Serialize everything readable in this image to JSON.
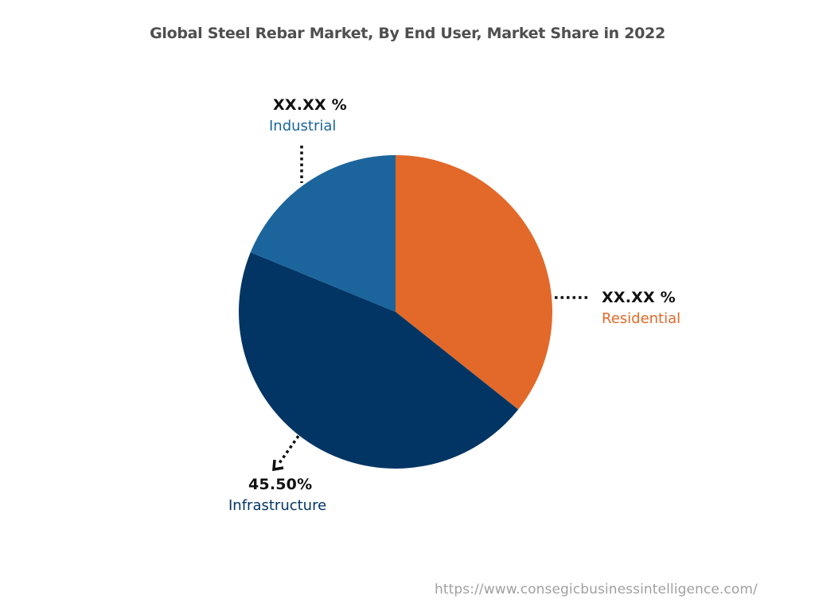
{
  "chart_data": {
    "type": "pie",
    "title": "Global Steel Rebar Market, By End User, Market Share in 2022",
    "slices": [
      {
        "label": "Residential",
        "value": 35.7,
        "display": "XX.XX %",
        "color": "#e2692a"
      },
      {
        "label": "Infrastructure",
        "value": 45.5,
        "display": "45.50%",
        "color": "#023564"
      },
      {
        "label": "Industrial",
        "value": 18.8,
        "display": "XX.XX %",
        "color": "#1b659c"
      }
    ],
    "start_angle_deg": 0,
    "direction": "clockwise",
    "legend": "none (callout labels)"
  },
  "title": "Global Steel Rebar Market, By End User, Market Share in 2022",
  "labels": {
    "industrial": {
      "pct": "XX.XX %",
      "name": "Industrial"
    },
    "residential": {
      "pct": "XX.XX %",
      "name": "Residential"
    },
    "infrastructure": {
      "pct": "45.50%",
      "name": "Infrastructure"
    }
  },
  "colors": {
    "residential": "#e2692a",
    "infrastructure": "#023564",
    "industrial": "#1b659c"
  },
  "footer": {
    "url": "https://www.consegicbusinessintelligence.com/"
  }
}
